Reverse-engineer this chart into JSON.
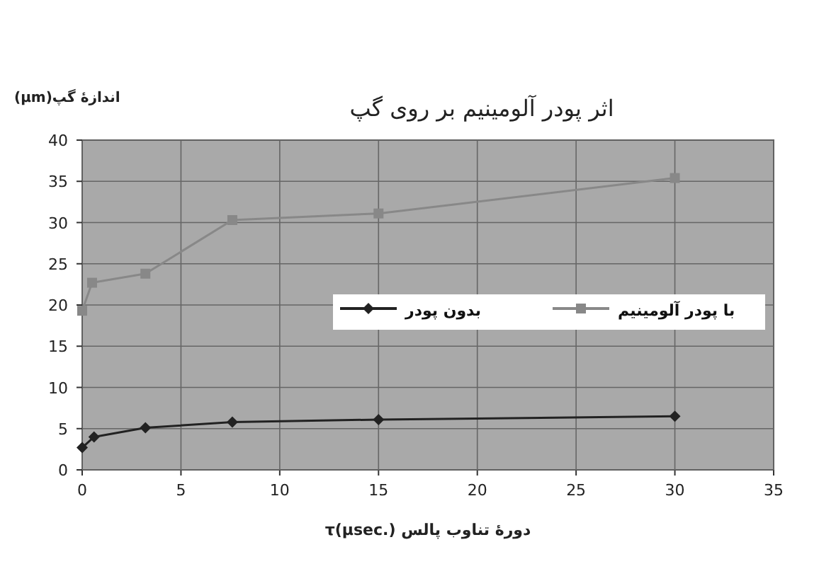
{
  "chart_data": {
    "type": "line",
    "title": "اثر پودر آلومینیم بر روی گپ",
    "ylabel": "اندازهٔ گپ(μm)",
    "xlabel": "دورهٔ تناوب پالس τ(μsec.)",
    "xlim": [
      0,
      35
    ],
    "xticks": [
      0,
      5,
      10,
      15,
      20,
      25,
      30,
      35
    ],
    "ylim": [
      0,
      40
    ],
    "yticks": [
      0,
      5,
      10,
      15,
      20,
      25,
      30,
      35,
      40
    ],
    "grid": true,
    "legend": "right",
    "series": [
      {
        "name": "بدون پودر",
        "color": "#222222",
        "marker": "diamond",
        "x": [
          0,
          0.6,
          3.2,
          7.6,
          15,
          30
        ],
        "values": [
          2.7,
          4,
          5.1,
          5.8,
          6.1,
          6.5
        ]
      },
      {
        "name": "با پودر آلومینیم",
        "color": "#888888",
        "marker": "square",
        "x": [
          0,
          0.5,
          3.2,
          7.6,
          15,
          30
        ],
        "values": [
          19.3,
          22.7,
          23.8,
          30.3,
          31.1,
          35.4
        ]
      }
    ]
  }
}
